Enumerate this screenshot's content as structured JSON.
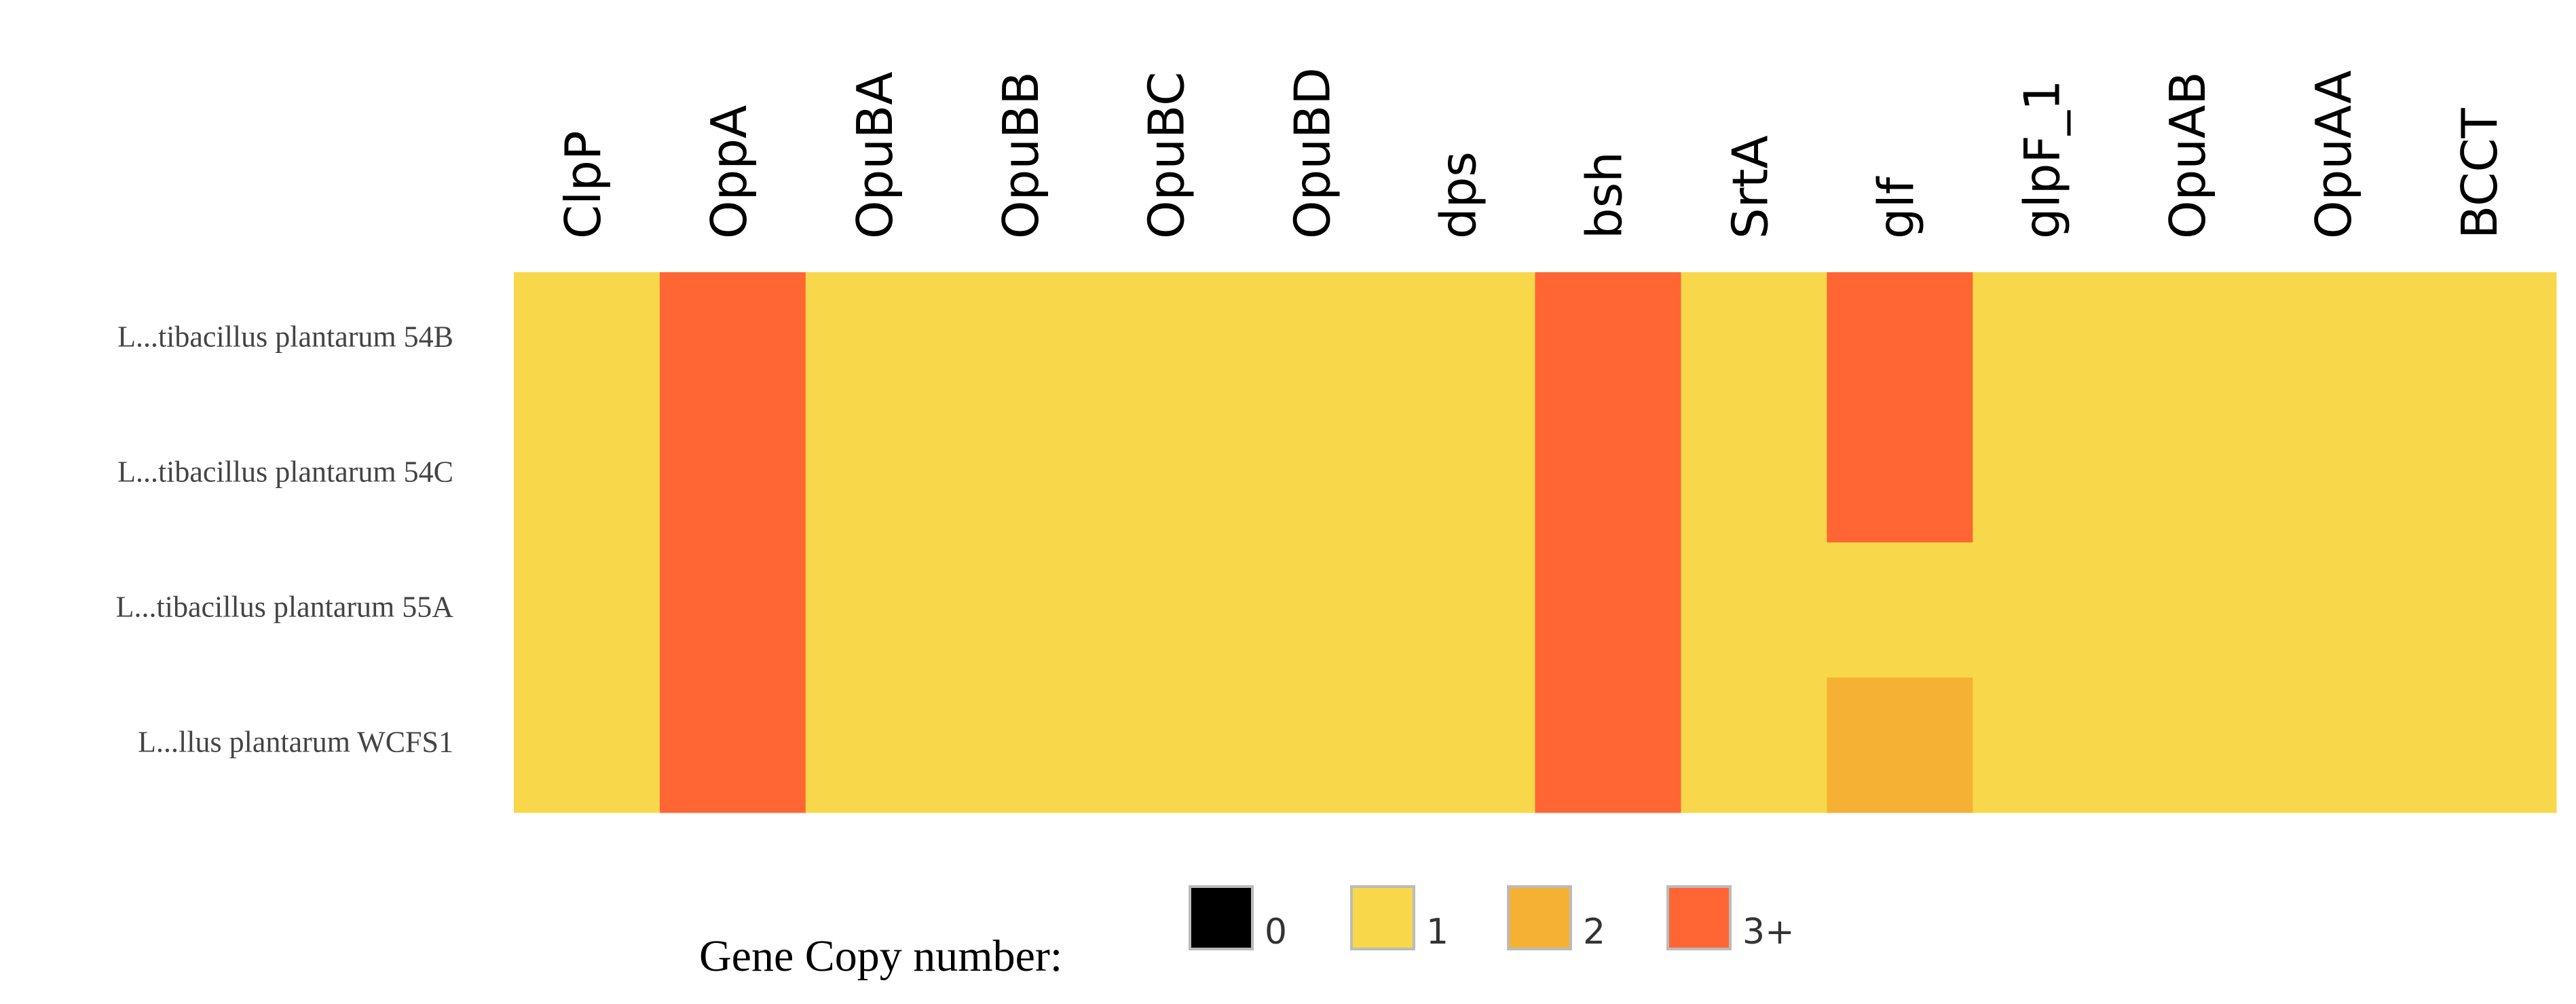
{
  "chart_data": {
    "type": "heatmap",
    "columns": [
      "ClpP",
      "OppA",
      "OpuBA",
      "OpuBB",
      "OpuBC",
      "OpuBD",
      "dps",
      "bsh",
      "SrtA",
      "glf",
      "glpF_1",
      "OpuAB",
      "OpuAA",
      "BCCT"
    ],
    "rows": [
      "L...tibacillus plantarum 54B",
      "L...tibacillus plantarum 54C",
      "L...tibacillus plantarum 55A",
      "L...llus plantarum WCFS1"
    ],
    "values": [
      [
        1,
        3,
        1,
        1,
        1,
        1,
        1,
        3,
        1,
        3,
        1,
        1,
        1,
        1
      ],
      [
        1,
        3,
        1,
        1,
        1,
        1,
        1,
        3,
        1,
        3,
        1,
        1,
        1,
        1
      ],
      [
        1,
        3,
        1,
        1,
        1,
        1,
        1,
        3,
        1,
        1,
        1,
        1,
        1,
        1
      ],
      [
        1,
        3,
        1,
        1,
        1,
        1,
        1,
        3,
        1,
        2,
        1,
        1,
        1,
        1
      ]
    ],
    "legend": {
      "title": "Gene Copy number:",
      "levels": [
        0,
        1,
        2,
        {
          "value": 3,
          "label": "3+"
        }
      ],
      "colors": [
        "#000000",
        "#f8d84a",
        "#f5b133",
        "#ff6633"
      ]
    }
  }
}
